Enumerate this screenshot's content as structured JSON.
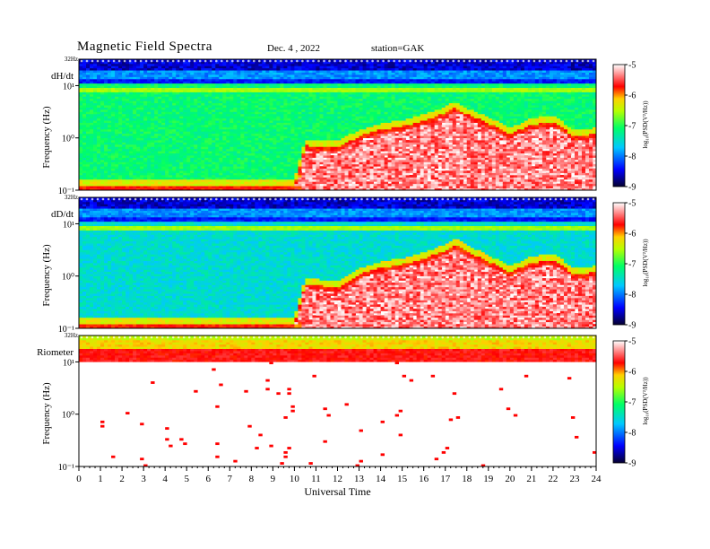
{
  "header": {
    "title": "Magnetic  Field  Spectra",
    "date": "Dec. 4  , 2022",
    "station": "station=GAK"
  },
  "colors": {
    "colormap": [
      "#08004f",
      "#1b1bff",
      "#00ffff",
      "#22ff22",
      "#ffff00",
      "#ff0000",
      "#ffffff"
    ]
  },
  "chart_data": [
    {
      "type": "heatmap",
      "panel_label": "dH/dt",
      "ylabel": "Frequency  (Hz)",
      "y_top_label": "32Hz",
      "ytick_labels": [
        "10¹",
        "10⁰",
        "10⁻¹"
      ],
      "ylim_hz": [
        0.1,
        32
      ],
      "yscale": "log",
      "xlim_hours": [
        0,
        24
      ],
      "colorbar": {
        "label": "log₁₀(PSD(V²/Hz))",
        "ticks": [
          -5,
          -6,
          -7,
          -8,
          -9
        ],
        "range": [
          -9,
          -5
        ]
      },
      "approx_data": {
        "hours": [
          0,
          2,
          4,
          6,
          8,
          10,
          10.5,
          12,
          13,
          14,
          15,
          16,
          17,
          17.5,
          18,
          19,
          20,
          21,
          22,
          23,
          24
        ],
        "lower_noise_edge_hz": [
          0.1,
          0.1,
          0.1,
          0.1,
          0.1,
          0.1,
          0.6,
          0.55,
          0.9,
          1.2,
          1.4,
          1.8,
          2.5,
          3.2,
          2.4,
          1.6,
          1.0,
          1.5,
          1.7,
          0.9,
          1.0
        ]
      }
    },
    {
      "type": "heatmap",
      "panel_label": "dD/dt",
      "ylabel": "Frequency  (Hz)",
      "y_top_label": "32Hz",
      "ytick_labels": [
        "10¹",
        "10⁰",
        "10⁻¹"
      ],
      "ylim_hz": [
        0.1,
        32
      ],
      "yscale": "log",
      "xlim_hours": [
        0,
        24
      ],
      "colorbar": {
        "label": "log₁₀(PSD(V²/Hz))",
        "ticks": [
          -5,
          -6,
          -7,
          -8,
          -9
        ],
        "range": [
          -9,
          -5
        ]
      },
      "approx_data": {
        "hours": [
          0,
          2,
          4,
          6,
          8,
          10,
          10.5,
          12,
          13,
          14,
          15,
          16,
          17,
          17.5,
          18,
          19,
          20,
          21,
          22,
          23,
          24
        ],
        "lower_noise_edge_hz": [
          0.1,
          0.1,
          0.1,
          0.1,
          0.1,
          0.1,
          0.6,
          0.5,
          0.9,
          1.2,
          1.4,
          1.8,
          2.6,
          3.3,
          2.5,
          1.6,
          1.0,
          1.5,
          1.7,
          0.9,
          1.0
        ]
      }
    },
    {
      "type": "heatmap",
      "panel_label": "Riometer",
      "ylabel": "Frequency  (Hz)",
      "y_top_label": "32Hz",
      "ytick_labels": [
        "10¹",
        "10⁰",
        "10⁻¹"
      ],
      "ylim_hz": [
        0.1,
        32
      ],
      "yscale": "log",
      "xlim_hours": [
        0,
        24
      ],
      "xticks": [
        0,
        1,
        2,
        3,
        4,
        5,
        6,
        7,
        8,
        9,
        10,
        11,
        12,
        13,
        14,
        15,
        16,
        17,
        18,
        19,
        20,
        21,
        22,
        23,
        24
      ],
      "xlabel": "Universal  Time",
      "colorbar": {
        "label": "log₁₀(PSD(V²/Hz))",
        "ticks": [
          -5,
          -6,
          -7,
          -8,
          -9
        ],
        "range": [
          -9,
          -5
        ]
      },
      "approx_data": {
        "band_hz": [
          10,
          32
        ]
      }
    }
  ]
}
